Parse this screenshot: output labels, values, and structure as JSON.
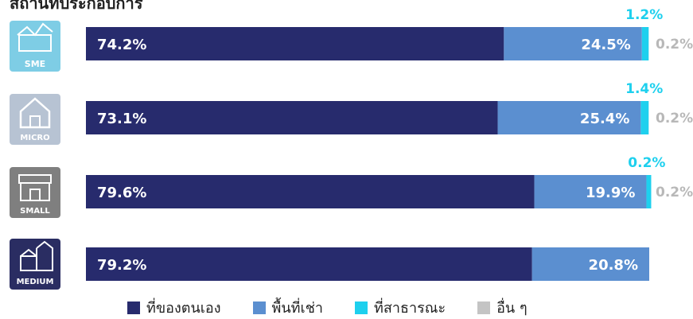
{
  "title": "สถานที่ประกอบการ",
  "colors": {
    "own": "#272b6d",
    "rent": "#5b8fd0",
    "public": "#1ed0ee",
    "other": "#c4c4c4"
  },
  "legend": [
    {
      "label": "ที่ของตนเอง",
      "color": "#272b6d"
    },
    {
      "label": "พื้นที่เช่า",
      "color": "#5b8fd0"
    },
    {
      "label": "ที่สาธารณะ",
      "color": "#1ed0ee"
    },
    {
      "label": "อื่น ๆ",
      "color": "#c4c4c4"
    }
  ],
  "chart_data": {
    "type": "bar",
    "stacked": true,
    "orientation": "horizontal",
    "categories": [
      "SME",
      "MICRO",
      "SMALL",
      "MEDIUM"
    ],
    "series": [
      {
        "name": "ที่ของตนเอง",
        "values": [
          74.2,
          73.1,
          79.6,
          79.2
        ]
      },
      {
        "name": "พื้นที่เช่า",
        "values": [
          24.5,
          25.4,
          19.9,
          20.8
        ]
      },
      {
        "name": "ที่สาธารณะ",
        "values": [
          1.2,
          1.4,
          0.2,
          0
        ]
      },
      {
        "name": "อื่น ๆ",
        "values": [
          0.2,
          0.2,
          0.2,
          0
        ]
      }
    ],
    "labels": {
      "own": [
        "74.2%",
        "73.1%",
        "79.6%",
        "79.2%"
      ],
      "rent": [
        "24.5%",
        "25.4%",
        "19.9%",
        "20.8%"
      ],
      "public": [
        "1.2%",
        "1.4%",
        "0.2%",
        ""
      ],
      "other": [
        "0.2%",
        "0.2%",
        "0.2%",
        ""
      ]
    },
    "unit": "%"
  }
}
